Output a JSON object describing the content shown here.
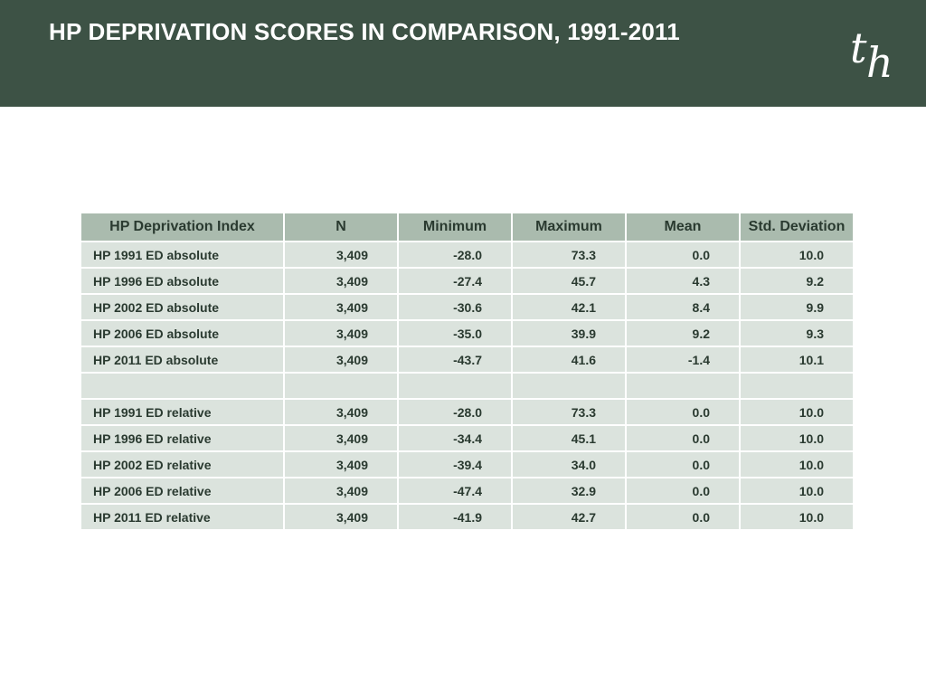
{
  "header": {
    "title": "HP DEPRIVATION SCORES IN COMPARISON, 1991-2011",
    "logo_text": "th"
  },
  "table": {
    "columns": [
      "HP Deprivation Index",
      "N",
      "Minimum",
      "Maximum",
      "Mean",
      "Std. Deviation"
    ],
    "rows": [
      [
        "HP 1991 ED absolute",
        "3,409",
        "-28.0",
        "73.3",
        "0.0",
        "10.0"
      ],
      [
        "HP 1996 ED absolute",
        "3,409",
        "-27.4",
        "45.7",
        "4.3",
        "9.2"
      ],
      [
        "HP 2002 ED absolute",
        "3,409",
        "-30.6",
        "42.1",
        "8.4",
        "9.9"
      ],
      [
        "HP 2006 ED absolute",
        "3,409",
        "-35.0",
        "39.9",
        "9.2",
        "9.3"
      ],
      [
        "HP 2011 ED absolute",
        "3,409",
        "-43.7",
        "41.6",
        "-1.4",
        "10.1"
      ],
      [
        "",
        "",
        "",
        "",
        "",
        ""
      ],
      [
        "HP 1991 ED relative",
        "3,409",
        "-28.0",
        "73.3",
        "0.0",
        "10.0"
      ],
      [
        "HP 1996 ED relative",
        "3,409",
        "-34.4",
        "45.1",
        "0.0",
        "10.0"
      ],
      [
        "HP 2002 ED relative",
        "3,409",
        "-39.4",
        "34.0",
        "0.0",
        "10.0"
      ],
      [
        "HP 2006 ED relative",
        "3,409",
        "-47.4",
        "32.9",
        "0.0",
        "10.0"
      ],
      [
        "HP 2011 ED relative",
        "3,409",
        "-41.9",
        "42.7",
        "0.0",
        "10.0"
      ]
    ]
  },
  "colors": {
    "header_bg": "#3d5245",
    "table_header_bg": "#aabbae",
    "table_cell_bg": "#dbe3dd",
    "text": "#2a3a30"
  }
}
